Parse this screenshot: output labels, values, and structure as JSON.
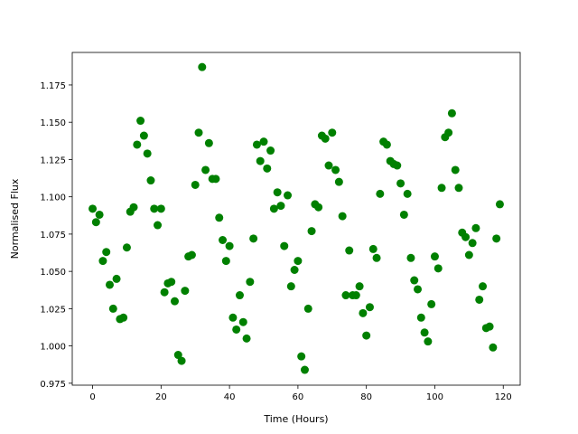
{
  "chart_data": {
    "type": "scatter",
    "x_label": "Time (Hours)",
    "y_label": "Normalised Flux",
    "color": "#008000",
    "x": [
      0,
      1,
      2,
      3,
      4,
      5,
      6,
      7,
      8,
      9,
      10,
      11,
      12,
      13,
      14,
      15,
      16,
      17,
      18,
      19,
      20,
      21,
      22,
      23,
      24,
      25,
      26,
      27,
      28,
      29,
      30,
      31,
      32,
      33,
      34,
      35,
      36,
      37,
      38,
      39,
      40,
      41,
      42,
      43,
      44,
      45,
      46,
      47,
      48,
      49,
      50,
      51,
      52,
      53,
      54,
      55,
      56,
      57,
      58,
      59,
      60,
      61,
      62,
      63,
      64,
      65,
      66,
      67,
      68,
      69,
      70,
      71,
      72,
      73,
      74,
      75,
      76,
      77,
      78,
      79,
      80,
      81,
      82,
      83,
      84,
      85,
      86,
      87,
      88,
      89,
      90,
      91,
      92,
      93,
      94,
      95,
      96,
      97,
      98,
      99,
      100,
      101,
      102,
      103,
      104,
      105,
      106,
      107,
      108,
      109,
      110,
      111,
      112,
      113,
      114,
      115,
      116,
      117,
      118,
      119
    ],
    "values": [
      1.092,
      1.083,
      1.088,
      1.057,
      1.063,
      1.041,
      1.025,
      1.045,
      1.018,
      1.019,
      1.066,
      1.09,
      1.093,
      1.135,
      1.151,
      1.141,
      1.129,
      1.111,
      1.092,
      1.081,
      1.092,
      1.036,
      1.042,
      1.043,
      1.03,
      0.994,
      0.99,
      1.037,
      1.06,
      1.061,
      1.108,
      1.143,
      1.187,
      1.118,
      1.136,
      1.112,
      1.112,
      1.086,
      1.071,
      1.057,
      1.067,
      1.019,
      1.011,
      1.034,
      1.016,
      1.005,
      1.043,
      1.072,
      1.135,
      1.124,
      1.137,
      1.119,
      1.131,
      1.092,
      1.103,
      1.094,
      1.067,
      1.101,
      1.04,
      1.051,
      1.057,
      0.993,
      0.984,
      1.025,
      1.077,
      1.095,
      1.093,
      1.141,
      1.139,
      1.121,
      1.143,
      1.118,
      1.11,
      1.087,
      1.034,
      1.064,
      1.034,
      1.034,
      1.04,
      1.022,
      1.007,
      1.026,
      1.065,
      1.059,
      1.102,
      1.137,
      1.135,
      1.124,
      1.122,
      1.121,
      1.109,
      1.088,
      1.102,
      1.059,
      1.044,
      1.038,
      1.019,
      1.009,
      1.003,
      1.028,
      1.06,
      1.052,
      1.106,
      1.14,
      1.143,
      1.156,
      1.118,
      1.106,
      1.076,
      1.073,
      1.061,
      1.069,
      1.079,
      1.031,
      1.04,
      1.012,
      1.013,
      0.999,
      1.072,
      1.095
    ],
    "xlim": [
      -5.95,
      124.95
    ],
    "ylim": [
      0.9737,
      1.1968
    ],
    "xticks": [
      0,
      20,
      40,
      60,
      80,
      100,
      120
    ],
    "yticks": [
      0.975,
      {
        "value": 1,
        "label": "1.000"
      },
      1.025,
      {
        "value": 1.05,
        "label": "1.050"
      },
      1.075,
      {
        "value": 1.1,
        "label": "1.100"
      },
      1.125,
      {
        "value": 1.15,
        "label": "1.150"
      },
      1.175
    ]
  }
}
